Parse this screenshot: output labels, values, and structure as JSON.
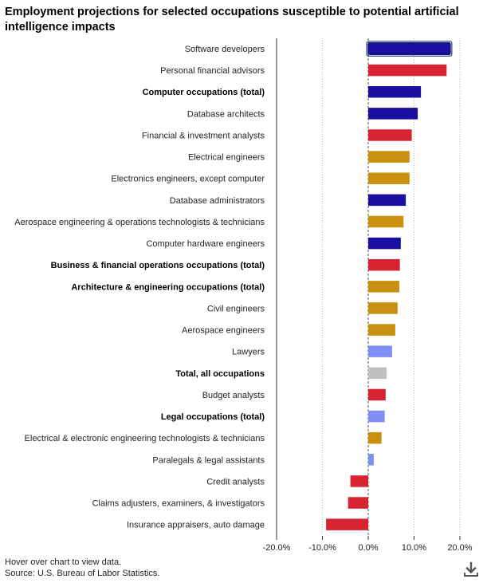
{
  "title": "Employment projections for selected occupations susceptible to potential artificial intelligence impacts",
  "footer": {
    "hover_note": "Hover over chart to view data.",
    "source": "Source: U.S. Bureau of Labor Statistics."
  },
  "icons": {
    "download": "download-icon"
  },
  "colors": {
    "computer": "#1a0f9e",
    "business": "#d62433",
    "engineering": "#c8900e",
    "legal": "#7f8ff5",
    "total": "#c0c0c0"
  },
  "chart_data": {
    "type": "bar",
    "orientation": "horizontal",
    "xlim": [
      -20,
      20
    ],
    "x_ticks": [
      "-20.0%",
      "-10.0%",
      "0.0%",
      "10.0%",
      "20.0%"
    ],
    "x_tick_values": [
      -20,
      -10,
      0,
      10,
      20
    ],
    "grid": "vertical dotted",
    "highlighted": "Software developers",
    "categories": [
      {
        "label": "Software developers",
        "value": 17.9,
        "group": "computer",
        "bold": false
      },
      {
        "label": "Personal financial advisors",
        "value": 17.1,
        "group": "business",
        "bold": false
      },
      {
        "label": "Computer occupations (total)",
        "value": 11.5,
        "group": "computer",
        "bold": true
      },
      {
        "label": "Database architects",
        "value": 10.8,
        "group": "computer",
        "bold": false
      },
      {
        "label": "Financial & investment analysts",
        "value": 9.5,
        "group": "business",
        "bold": false
      },
      {
        "label": "Electrical engineers",
        "value": 9.0,
        "group": "engineering",
        "bold": false
      },
      {
        "label": "Electronics engineers, except computer",
        "value": 9.0,
        "group": "engineering",
        "bold": false
      },
      {
        "label": "Database administrators",
        "value": 8.2,
        "group": "computer",
        "bold": false
      },
      {
        "label": "Aerospace engineering & operations technologists & technicians",
        "value": 7.7,
        "group": "engineering",
        "bold": false
      },
      {
        "label": "Computer hardware engineers",
        "value": 7.1,
        "group": "computer",
        "bold": false
      },
      {
        "label": "Business & financial operations occupations (total)",
        "value": 6.9,
        "group": "business",
        "bold": true
      },
      {
        "label": "Architecture & engineering occupations (total)",
        "value": 6.8,
        "group": "engineering",
        "bold": true
      },
      {
        "label": "Civil engineers",
        "value": 6.4,
        "group": "engineering",
        "bold": false
      },
      {
        "label": "Aerospace engineers",
        "value": 5.9,
        "group": "engineering",
        "bold": false
      },
      {
        "label": "Lawyers",
        "value": 5.2,
        "group": "legal",
        "bold": false
      },
      {
        "label": "Total, all occupations",
        "value": 4.0,
        "group": "total",
        "bold": true
      },
      {
        "label": "Budget analysts",
        "value": 3.8,
        "group": "business",
        "bold": false
      },
      {
        "label": "Legal occupations (total)",
        "value": 3.6,
        "group": "legal",
        "bold": true
      },
      {
        "label": "Electrical & electronic engineering technologists & technicians",
        "value": 2.9,
        "group": "engineering",
        "bold": false
      },
      {
        "label": "Paralegals & legal assistants",
        "value": 1.2,
        "group": "legal",
        "bold": false
      },
      {
        "label": "Credit analysts",
        "value": -3.9,
        "group": "business",
        "bold": false
      },
      {
        "label": "Claims adjusters, examiners, & investigators",
        "value": -4.4,
        "group": "business",
        "bold": false
      },
      {
        "label": "Insurance appraisers, auto damage",
        "value": -9.2,
        "group": "business",
        "bold": false
      }
    ]
  }
}
